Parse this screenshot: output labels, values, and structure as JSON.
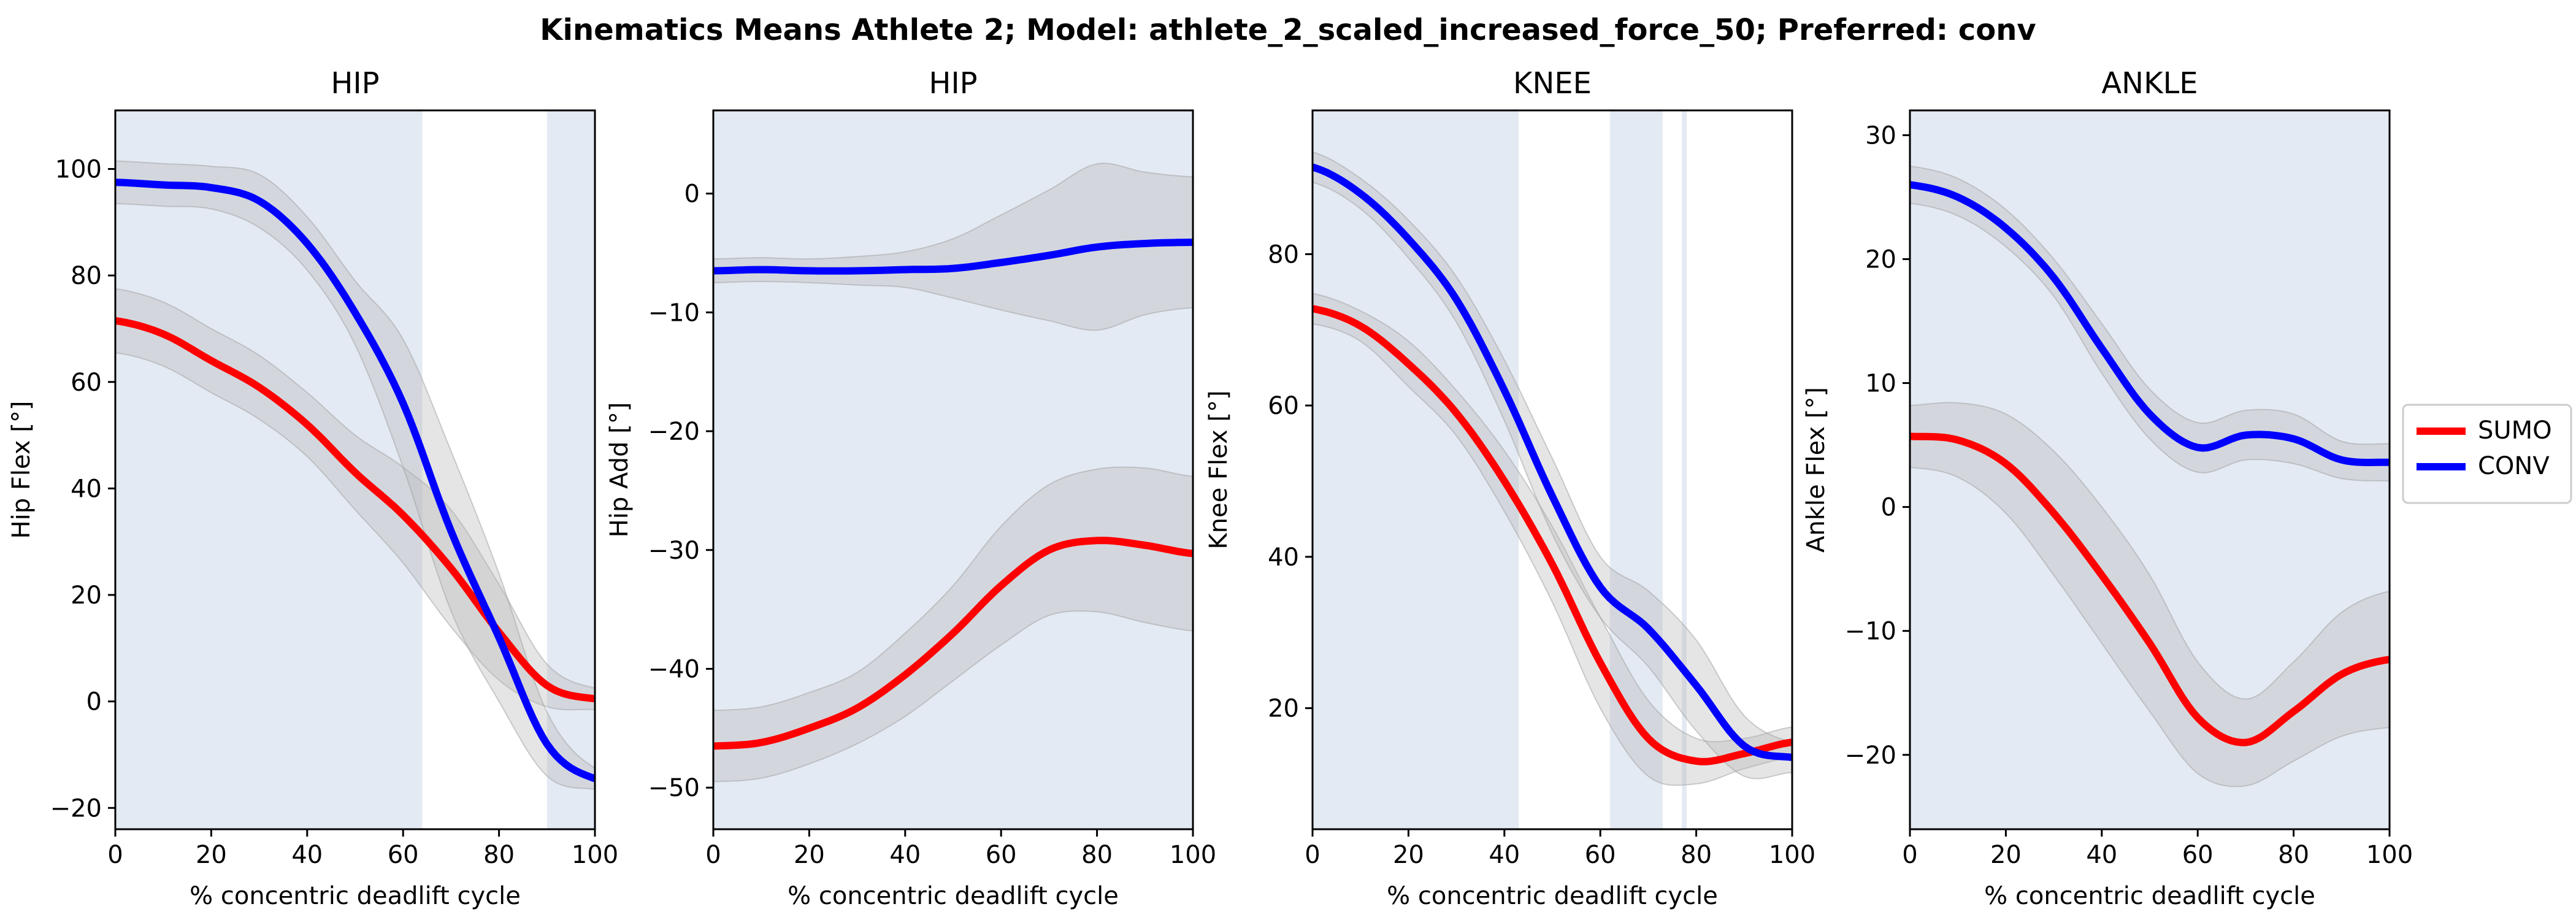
{
  "title": "Kinematics Means Athlete 2; Model: athlete_2_scaled_increased_force_50; Preferred: conv",
  "colors": {
    "highlight": "#e4eaf3",
    "sd_band": "#b4b4b4",
    "sumo": "#ff0000",
    "conv": "#0000ff"
  },
  "legend": {
    "placement": "right",
    "entries": [
      {
        "label": "SUMO",
        "color": "#ff0000"
      },
      {
        "label": "CONV",
        "color": "#0000ff"
      }
    ]
  },
  "chart_data": [
    {
      "type": "line",
      "title": "HIP",
      "xlabel": "% concentric deadlift cycle",
      "ylabel": "Hip Flex [°]",
      "xlim": [
        0,
        100
      ],
      "ylim": [
        -24,
        111
      ],
      "xticks": [
        0,
        20,
        40,
        60,
        80,
        100
      ],
      "yticks": [
        -20,
        0,
        20,
        40,
        60,
        80,
        100
      ],
      "grid": false,
      "highlight_ranges": [
        [
          0,
          64
        ],
        [
          90,
          100
        ]
      ],
      "x": [
        0,
        10,
        20,
        30,
        40,
        50,
        60,
        70,
        80,
        90,
        100
      ],
      "series": [
        {
          "name": "SUMO",
          "values": [
            71.5,
            69,
            64,
            59,
            52,
            43,
            35,
            25,
            13,
            3,
            0.5
          ],
          "sd": [
            6,
            6,
            6,
            6,
            6,
            7,
            9,
            11,
            9,
            4,
            2
          ]
        },
        {
          "name": "CONV",
          "values": [
            97.5,
            97,
            96.5,
            94,
            86,
            73,
            56,
            32,
            12,
            -8,
            -14.5
          ],
          "sd": [
            4,
            4,
            4,
            5,
            5,
            6,
            12,
            15,
            12,
            6,
            2
          ]
        }
      ]
    },
    {
      "type": "line",
      "title": "HIP",
      "xlabel": "% concentric deadlift cycle",
      "ylabel": "Hip Add [°]",
      "xlim": [
        0,
        100
      ],
      "ylim": [
        -53.5,
        7
      ],
      "xticks": [
        0,
        20,
        40,
        60,
        80,
        100
      ],
      "yticks": [
        -50,
        -40,
        -30,
        -20,
        -10,
        0
      ],
      "grid": false,
      "highlight_ranges": [
        [
          0,
          100
        ]
      ],
      "x": [
        0,
        10,
        20,
        30,
        40,
        50,
        60,
        70,
        80,
        90,
        100
      ],
      "series": [
        {
          "name": "SUMO",
          "values": [
            -46.5,
            -46.2,
            -45,
            -43.3,
            -40.5,
            -37,
            -33,
            -30,
            -29.2,
            -29.6,
            -30.3
          ],
          "sd": [
            3,
            3,
            3,
            3,
            3.5,
            4,
            5,
            5.5,
            6,
            6.5,
            6.5
          ]
        },
        {
          "name": "CONV",
          "values": [
            -6.5,
            -6.4,
            -6.5,
            -6.5,
            -6.4,
            -6.3,
            -5.8,
            -5.2,
            -4.5,
            -4.2,
            -4.1
          ],
          "sd": [
            1,
            1,
            1,
            1.2,
            1.5,
            2.5,
            4,
            5.5,
            7,
            6,
            5.5
          ]
        }
      ]
    },
    {
      "type": "line",
      "title": "KNEE",
      "xlabel": "% concentric deadlift cycle",
      "ylabel": "Knee Flex [°]",
      "xlim": [
        0,
        100
      ],
      "ylim": [
        4,
        99
      ],
      "xticks": [
        0,
        20,
        40,
        60,
        80,
        100
      ],
      "yticks": [
        20,
        40,
        60,
        80
      ],
      "grid": false,
      "highlight_ranges": [
        [
          0,
          43
        ],
        [
          62,
          73
        ],
        [
          77,
          78
        ]
      ],
      "x": [
        0,
        10,
        20,
        30,
        40,
        50,
        60,
        70,
        80,
        90,
        100
      ],
      "series": [
        {
          "name": "SUMO",
          "values": [
            72.8,
            70.5,
            65.5,
            59,
            50,
            39,
            26,
            16,
            13,
            14,
            15.5
          ],
          "sd": [
            2,
            2,
            3,
            3,
            4,
            5,
            6,
            5,
            3,
            2,
            2
          ]
        },
        {
          "name": "CONV",
          "values": [
            91.5,
            88,
            82,
            74,
            62,
            48,
            36,
            30.5,
            23,
            15,
            13.5
          ],
          "sd": [
            2,
            2,
            2.5,
            3,
            4,
            5,
            4,
            5,
            6,
            4,
            2
          ]
        }
      ]
    },
    {
      "type": "line",
      "title": "ANKLE",
      "xlabel": "% concentric deadlift cycle",
      "ylabel": "Ankle Flex [°]",
      "xlim": [
        0,
        100
      ],
      "ylim": [
        -26,
        32
      ],
      "xticks": [
        0,
        20,
        40,
        60,
        80,
        100
      ],
      "yticks": [
        -20,
        -10,
        0,
        10,
        20,
        30
      ],
      "grid": false,
      "highlight_ranges": [
        [
          0,
          100
        ]
      ],
      "x": [
        0,
        10,
        20,
        30,
        40,
        50,
        60,
        70,
        80,
        90,
        100
      ],
      "series": [
        {
          "name": "SUMO",
          "values": [
            5.7,
            5.4,
            3.5,
            -0.5,
            -5.5,
            -11,
            -17,
            -19,
            -16.5,
            -13.5,
            -12.3
          ],
          "sd": [
            2.5,
            3,
            4,
            5,
            5.5,
            5.5,
            4.5,
            3.5,
            4,
            5,
            5.5
          ]
        },
        {
          "name": "CONV",
          "values": [
            26,
            25,
            22.5,
            18.5,
            12.8,
            7.5,
            4.8,
            5.8,
            5.5,
            3.8,
            3.6
          ],
          "sd": [
            1.5,
            1.5,
            1.5,
            1.5,
            2,
            2,
            2,
            2,
            2,
            1.5,
            1.5
          ]
        }
      ]
    }
  ]
}
